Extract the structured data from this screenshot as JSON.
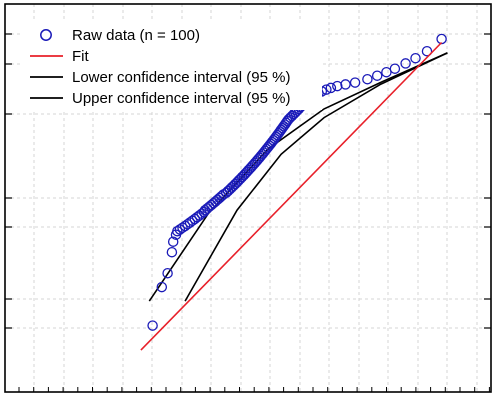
{
  "chart_data": {
    "type": "scatter",
    "title": "",
    "xlabel": "",
    "ylabel": "",
    "x_scale": "log",
    "grid": true,
    "legend_position": "top-left",
    "tick_labels_visible": false,
    "colors": {
      "raw": "#1a1ab8",
      "fit": "#e8202a",
      "ci": "#000000",
      "grid": "#d4d4d4",
      "frame": "#000000"
    },
    "series": [
      {
        "name": "Raw data (n = 100)",
        "kind": "markers",
        "x": [
          0.87,
          0.93,
          0.97,
          1.0,
          1.01,
          1.03,
          1.04,
          1.06,
          1.08,
          1.1,
          1.12,
          1.14,
          1.16,
          1.18,
          1.2,
          1.22,
          1.24,
          1.26,
          1.27,
          1.29,
          1.31,
          1.33,
          1.35,
          1.37,
          1.39,
          1.41,
          1.43,
          1.45,
          1.48,
          1.5,
          1.52,
          1.54,
          1.56,
          1.58,
          1.6,
          1.62,
          1.64,
          1.66,
          1.68,
          1.7,
          1.72,
          1.74,
          1.76,
          1.78,
          1.8,
          1.82,
          1.84,
          1.86,
          1.88,
          1.9,
          1.92,
          1.94,
          1.96,
          1.98,
          2.0,
          2.02,
          2.04,
          2.06,
          2.08,
          2.1,
          2.12,
          2.14,
          2.16,
          2.18,
          2.2,
          2.22,
          2.24,
          2.26,
          2.28,
          2.3,
          2.32,
          2.35,
          2.38,
          2.41,
          2.44,
          2.47,
          2.5,
          2.53,
          2.56,
          2.6,
          2.64,
          2.68,
          2.72,
          2.77,
          2.82,
          2.88,
          2.95,
          3.05,
          3.15,
          3.3,
          3.5,
          3.75,
          4.1,
          4.4,
          4.7,
          5.0,
          5.4,
          5.8,
          6.3,
          7.0
        ],
        "y": [
          -4.6,
          -3.5,
          -3.1,
          -2.5,
          -2.2,
          -2.0,
          -1.9,
          -1.85,
          -1.8,
          -1.75,
          -1.7,
          -1.65,
          -1.6,
          -1.55,
          -1.5,
          -1.45,
          -1.4,
          -1.35,
          -1.3,
          -1.25,
          -1.2,
          -1.15,
          -1.1,
          -1.05,
          -1.0,
          -0.95,
          -0.9,
          -0.85,
          -0.8,
          -0.75,
          -0.7,
          -0.65,
          -0.6,
          -0.55,
          -0.5,
          -0.45,
          -0.4,
          -0.35,
          -0.3,
          -0.25,
          -0.2,
          -0.15,
          -0.1,
          -0.05,
          0.0,
          0.05,
          0.1,
          0.15,
          0.2,
          0.25,
          0.3,
          0.35,
          0.4,
          0.45,
          0.5,
          0.55,
          0.6,
          0.65,
          0.7,
          0.75,
          0.8,
          0.85,
          0.9,
          0.95,
          1.0,
          1.05,
          1.1,
          1.15,
          1.2,
          1.25,
          1.3,
          1.35,
          1.4,
          1.45,
          1.5,
          1.55,
          1.6,
          1.65,
          1.7,
          1.75,
          1.8,
          1.85,
          1.9,
          1.95,
          2.0,
          2.05,
          2.1,
          2.15,
          2.2,
          2.25,
          2.3,
          2.35,
          2.45,
          2.55,
          2.65,
          2.75,
          2.9,
          3.05,
          3.25,
          3.6
        ]
      },
      {
        "name": "Fit",
        "kind": "line",
        "x": [
          0.8,
          7.0
        ],
        "y": [
          -5.3,
          3.5
        ]
      },
      {
        "name": "Lower confidence interval (95 %)",
        "kind": "line",
        "x": [
          0.85,
          1.3,
          2.0,
          3.0,
          4.5,
          7.3
        ],
        "y": [
          -3.9,
          -1.4,
          0.45,
          1.6,
          2.35,
          3.2
        ]
      },
      {
        "name": "Upper confidence interval (95 %)",
        "kind": "line",
        "x": [
          1.1,
          1.6,
          2.2,
          3.0,
          4.5,
          7.3
        ],
        "y": [
          -3.9,
          -1.3,
          0.3,
          1.35,
          2.3,
          3.2
        ]
      }
    ]
  }
}
